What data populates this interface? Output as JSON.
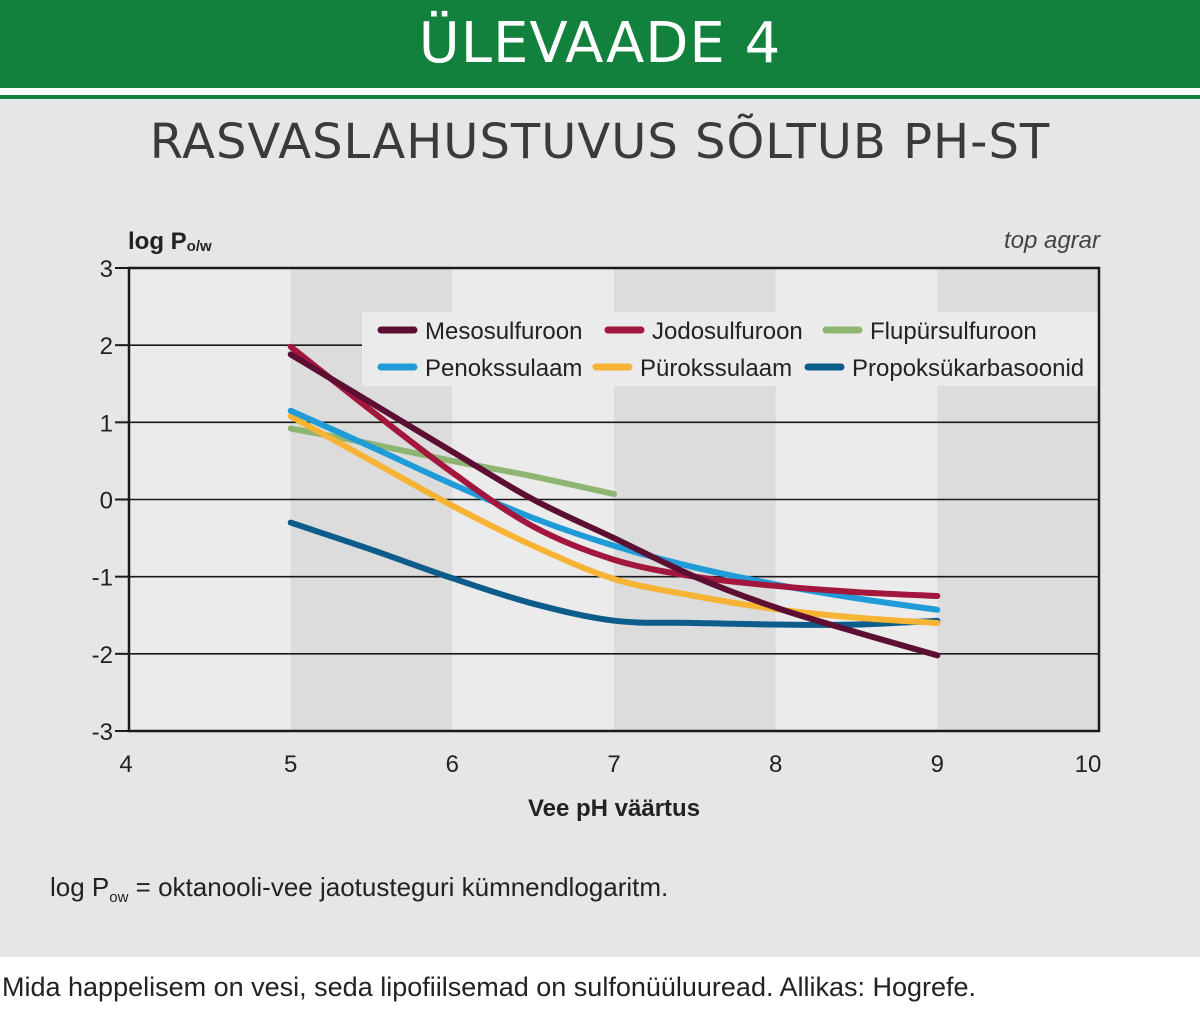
{
  "header": {
    "title": "ÜLEVAADE 4"
  },
  "subtitle": "RASVASLAHUSTUVUS SÕLTUB PH-ST",
  "source_mark": "top agrar",
  "footnote": {
    "prefix": "log P",
    "sub": "ow",
    "text": " = oktanooli-vee jaotusteguri kümnendlogaritm."
  },
  "caption": "Mida happelisem on vesi, seda lipofiilsemad on sulfonüüluuread. Allikas: Hogrefe.",
  "colors": {
    "header_bg": "#13813e",
    "Mesosulfuroon": "#5c0f32",
    "Jodosulfuroon": "#a3173e",
    "Flupürsulfuroon": "#8fb573",
    "Penokssulaam": "#1f9cd7",
    "Pürokssulaam": "#f7b334",
    "Propoksükarbasoonid": "#0d5c8c"
  },
  "chart_data": {
    "type": "line",
    "xlabel": "Vee pH väärtus",
    "ylabel_main": "log P",
    "ylabel_sub": "o/w",
    "xlim": [
      4,
      10
    ],
    "ylim": [
      -3,
      3
    ],
    "xticks": [
      "4",
      "5",
      "6",
      "7",
      "8",
      "9",
      "10"
    ],
    "yticks": [
      "3",
      "2",
      "1",
      "0",
      "-1",
      "-2",
      "-3"
    ],
    "grid": true,
    "legend_position": "top-right",
    "series": [
      {
        "name": "Mesosulfuroon",
        "x": [
          5,
          5.5,
          6,
          6.5,
          7,
          7.5,
          8,
          8.5,
          9
        ],
        "y": [
          1.88,
          1.25,
          0.62,
          0.0,
          -0.5,
          -1.0,
          -1.4,
          -1.72,
          -2.02
        ]
      },
      {
        "name": "Jodosulfuroon",
        "x": [
          5,
          5.5,
          6,
          6.5,
          7,
          7.5,
          8,
          8.5,
          9
        ],
        "y": [
          1.98,
          1.15,
          0.35,
          -0.35,
          -0.78,
          -1.0,
          -1.12,
          -1.2,
          -1.25
        ]
      },
      {
        "name": "Flupürsulfuroon",
        "x": [
          5,
          5.5,
          6,
          6.5,
          7
        ],
        "y": [
          0.92,
          0.72,
          0.5,
          0.3,
          0.07
        ]
      },
      {
        "name": "Penokssulaam",
        "x": [
          5,
          5.5,
          6,
          6.5,
          7,
          7.5,
          8,
          8.5,
          9
        ],
        "y": [
          1.15,
          0.68,
          0.2,
          -0.24,
          -0.6,
          -0.88,
          -1.1,
          -1.28,
          -1.43
        ]
      },
      {
        "name": "Pürokssulaam",
        "x": [
          5,
          5.5,
          6,
          6.5,
          7,
          7.5,
          8,
          8.5,
          9
        ],
        "y": [
          1.08,
          0.5,
          -0.08,
          -0.6,
          -1.03,
          -1.25,
          -1.42,
          -1.53,
          -1.6
        ]
      },
      {
        "name": "Propoksükarbasoonid",
        "x": [
          5,
          5.5,
          6,
          6.5,
          7,
          7.5,
          8,
          8.5,
          9
        ],
        "y": [
          -0.3,
          -0.65,
          -1.02,
          -1.35,
          -1.57,
          -1.6,
          -1.62,
          -1.62,
          -1.57
        ]
      }
    ]
  }
}
